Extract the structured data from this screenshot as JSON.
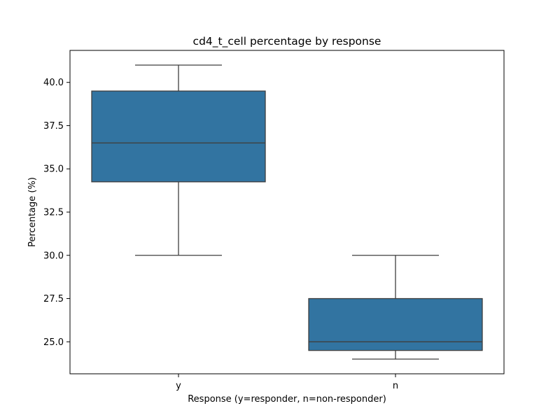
{
  "chart_data": {
    "type": "box",
    "title": "cd4_t_cell percentage by response",
    "xlabel": "Response (y=responder, n=non-responder)",
    "ylabel": "Percentage (%)",
    "categories": [
      "y",
      "n"
    ],
    "boxes": [
      {
        "category": "y",
        "whisker_low": 30.0,
        "q1": 34.25,
        "median": 36.5,
        "q3": 39.5,
        "whisker_high": 41.0
      },
      {
        "category": "n",
        "whisker_low": 24.0,
        "q1": 24.5,
        "median": 25.0,
        "q3": 27.5,
        "whisker_high": 30.0
      }
    ],
    "ylim": [
      23.15,
      41.85
    ],
    "yticks": [
      25.0,
      27.5,
      30.0,
      32.5,
      35.0,
      37.5,
      40.0
    ],
    "ytick_labels": [
      "25.0",
      "27.5",
      "30.0",
      "32.5",
      "35.0",
      "37.5",
      "40.0"
    ],
    "grid": false,
    "legend": "none",
    "colors": {
      "box_fill": "#3274a1",
      "line": "#3f3f3f",
      "axis": "#000000"
    }
  }
}
